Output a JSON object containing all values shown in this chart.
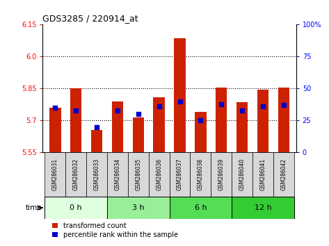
{
  "title": "GDS3285 / 220914_at",
  "samples": [
    "GSM286031",
    "GSM286032",
    "GSM286033",
    "GSM286034",
    "GSM286035",
    "GSM286036",
    "GSM286037",
    "GSM286038",
    "GSM286039",
    "GSM286040",
    "GSM286041",
    "GSM286042"
  ],
  "transformed_count": [
    5.76,
    5.85,
    5.655,
    5.79,
    5.715,
    5.81,
    6.085,
    5.74,
    5.855,
    5.785,
    5.845,
    5.855
  ],
  "percentile_rank": [
    35,
    33,
    20,
    33,
    30,
    36,
    40,
    25,
    38,
    33,
    36,
    37
  ],
  "groups": [
    {
      "label": "0 h",
      "indices": [
        0,
        1,
        2
      ],
      "color": "#e0ffe0"
    },
    {
      "label": "3 h",
      "indices": [
        3,
        4,
        5
      ],
      "color": "#99ee99"
    },
    {
      "label": "6 h",
      "indices": [
        6,
        7,
        8
      ],
      "color": "#55dd55"
    },
    {
      "label": "12 h",
      "indices": [
        9,
        10,
        11
      ],
      "color": "#33cc33"
    }
  ],
  "ylim_left": [
    5.55,
    6.15
  ],
  "ylim_right": [
    0,
    100
  ],
  "yticks_left": [
    5.55,
    5.7,
    5.85,
    6.0,
    6.15
  ],
  "yticks_right": [
    0,
    25,
    50,
    75,
    100
  ],
  "bar_color_red": "#cc2200",
  "bar_color_blue": "#0000cc",
  "bg_color": "#ffffff",
  "bar_width": 0.55,
  "base_value": 5.55
}
